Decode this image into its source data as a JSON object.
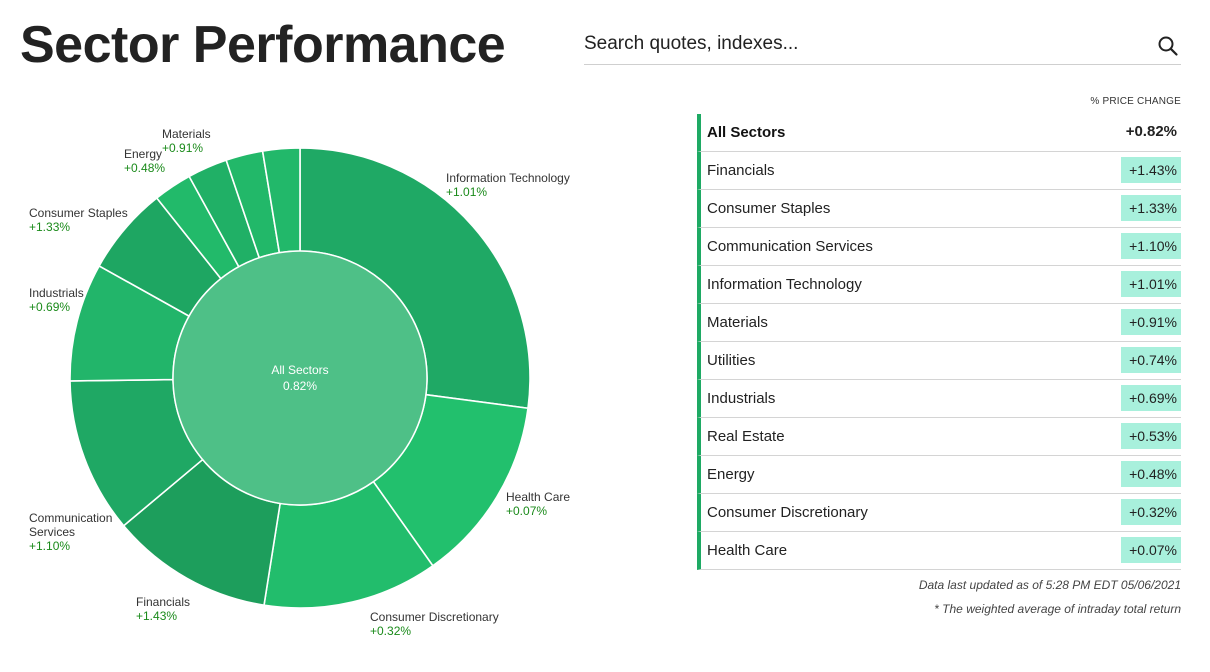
{
  "header": {
    "title": "Sector Performance"
  },
  "search": {
    "placeholder": "Search quotes, indexes..."
  },
  "table": {
    "column_header": "% PRICE CHANGE",
    "all": {
      "name": "All Sectors",
      "value": "+0.82%"
    },
    "rows": [
      {
        "name": "Financials",
        "value": "+1.43%"
      },
      {
        "name": "Consumer Staples",
        "value": "+1.33%"
      },
      {
        "name": "Communication Services",
        "value": "+1.10%"
      },
      {
        "name": "Information Technology",
        "value": "+1.01%"
      },
      {
        "name": "Materials",
        "value": "+0.91%"
      },
      {
        "name": "Utilities",
        "value": "+0.74%"
      },
      {
        "name": "Industrials",
        "value": "+0.69%"
      },
      {
        "name": "Real Estate",
        "value": "+0.53%"
      },
      {
        "name": "Energy",
        "value": "+0.48%"
      },
      {
        "name": "Consumer Discretionary",
        "value": "+0.32%"
      },
      {
        "name": "Health Care",
        "value": "+0.07%"
      }
    ]
  },
  "footnotes": {
    "updated": "Data last updated as of 5:28 PM EDT 05/06/2021",
    "note": "* The weighted average of intraday total return"
  },
  "chart_data": {
    "type": "pie",
    "style": "donut",
    "center": {
      "label": "All Sectors",
      "value": "0.82%"
    },
    "slices": [
      {
        "name": "Information Technology",
        "value_label": "+1.01%",
        "share": 0.271,
        "color": "#1fa965",
        "labeled": true
      },
      {
        "name": "Health Care",
        "value_label": "+0.07%",
        "share": 0.131,
        "color": "#22c06d",
        "labeled": true
      },
      {
        "name": "Consumer Discretionary",
        "value_label": "+0.32%",
        "share": 0.123,
        "color": "#22bd6c",
        "labeled": true
      },
      {
        "name": "Financials",
        "value_label": "+1.43%",
        "share": 0.114,
        "color": "#1d9e5c",
        "labeled": true
      },
      {
        "name": "Communication Services",
        "value_label": "+1.10%",
        "share": 0.109,
        "color": "#1fa864",
        "labeled": true
      },
      {
        "name": "Industrials",
        "value_label": "+0.69%",
        "share": 0.083,
        "color": "#22b56a",
        "labeled": true
      },
      {
        "name": "Consumer Staples",
        "value_label": "+1.33%",
        "share": 0.062,
        "color": "#1ea662",
        "labeled": true
      },
      {
        "name": "Utilities",
        "share": 0.027,
        "color": "#22ba6a",
        "labeled": false
      },
      {
        "name": "Energy",
        "value_label": "+0.48%",
        "share": 0.028,
        "color": "#20b066",
        "labeled": true
      },
      {
        "name": "Materials",
        "value_label": "+0.91%",
        "share": 0.026,
        "color": "#22b869",
        "labeled": true
      },
      {
        "name": "Real Estate",
        "share": 0.026,
        "color": "#22b86a",
        "labeled": false
      }
    ],
    "inner_color": "#4ec087"
  }
}
